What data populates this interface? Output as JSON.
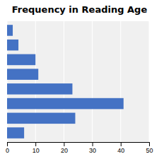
{
  "chart_data": {
    "type": "bar",
    "orientation": "horizontal",
    "title": "Frequency in Reading Age",
    "categories": [
      null,
      null,
      null,
      null,
      null,
      null,
      null,
      null
    ],
    "values": [
      2,
      4,
      10,
      11,
      23,
      41,
      24,
      6
    ],
    "color": "#4472C4",
    "xlim": [
      0,
      50
    ],
    "xticks": [
      0,
      10,
      20,
      30,
      40,
      50
    ],
    "grid": true,
    "tick_labels": "x"
  }
}
